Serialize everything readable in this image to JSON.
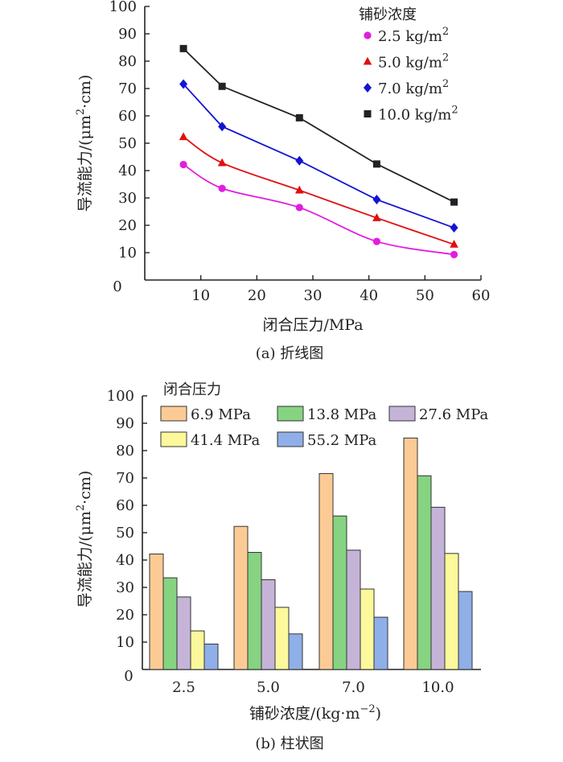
{
  "chart_data": [
    {
      "type": "line",
      "caption": "(a) 折线图",
      "xlabel": "闭合压力/MPa",
      "ylabel": "导流能力/(μm²·cm)",
      "xlim": [
        0,
        60
      ],
      "ylim": [
        0,
        100
      ],
      "xticks": [
        10,
        20,
        30,
        40,
        50,
        60
      ],
      "yticks": [
        10,
        20,
        30,
        40,
        50,
        60,
        70,
        80,
        90,
        100
      ],
      "origin_label": "0",
      "legend_title": "铺砂浓度",
      "legend_position": "top-right",
      "x": [
        6.9,
        13.8,
        27.6,
        41.4,
        55.2
      ],
      "series": [
        {
          "name": "2.5 kg/m²",
          "marker": "circle",
          "color": "#e01ee0",
          "values": [
            42.2,
            33.5,
            26.5,
            14.1,
            9.3
          ]
        },
        {
          "name": "5.0 kg/m²",
          "marker": "triangle",
          "color": "#e01010",
          "values": [
            52.3,
            42.8,
            32.8,
            22.7,
            13.0
          ]
        },
        {
          "name": "7.0 kg/m²",
          "marker": "diamond",
          "color": "#1414d2",
          "values": [
            71.6,
            56.1,
            43.6,
            29.4,
            19.1
          ]
        },
        {
          "name": "10.0 kg/m²",
          "marker": "square",
          "color": "#222222",
          "values": [
            84.6,
            70.8,
            59.3,
            42.4,
            28.5
          ]
        }
      ]
    },
    {
      "type": "bar",
      "caption": "(b) 柱状图",
      "xlabel": "铺砂浓度/(kg·m⁻²)",
      "ylabel": "导流能力/(μm²·cm)",
      "ylim": [
        0,
        100
      ],
      "yticks": [
        10,
        20,
        30,
        40,
        50,
        60,
        70,
        80,
        90,
        100
      ],
      "origin_label": "0",
      "legend_title": "闭合压力",
      "legend_position": "top",
      "categories": [
        "2.5",
        "5.0",
        "7.0",
        "10.0"
      ],
      "series": [
        {
          "name": "6.9 MPa",
          "color": "#fccb95",
          "values": [
            42.2,
            52.3,
            71.6,
            84.6
          ]
        },
        {
          "name": "13.8 MPa",
          "color": "#86d382",
          "values": [
            33.5,
            42.8,
            56.1,
            70.8
          ]
        },
        {
          "name": "27.6 MPa",
          "color": "#c5b4d8",
          "values": [
            26.5,
            32.8,
            43.6,
            59.3
          ]
        },
        {
          "name": "41.4 MPa",
          "color": "#fbf99b",
          "values": [
            14.1,
            22.7,
            29.4,
            42.4
          ]
        },
        {
          "name": "55.2 MPa",
          "color": "#8fafe8",
          "values": [
            9.3,
            13.0,
            19.1,
            28.5
          ]
        }
      ]
    }
  ]
}
